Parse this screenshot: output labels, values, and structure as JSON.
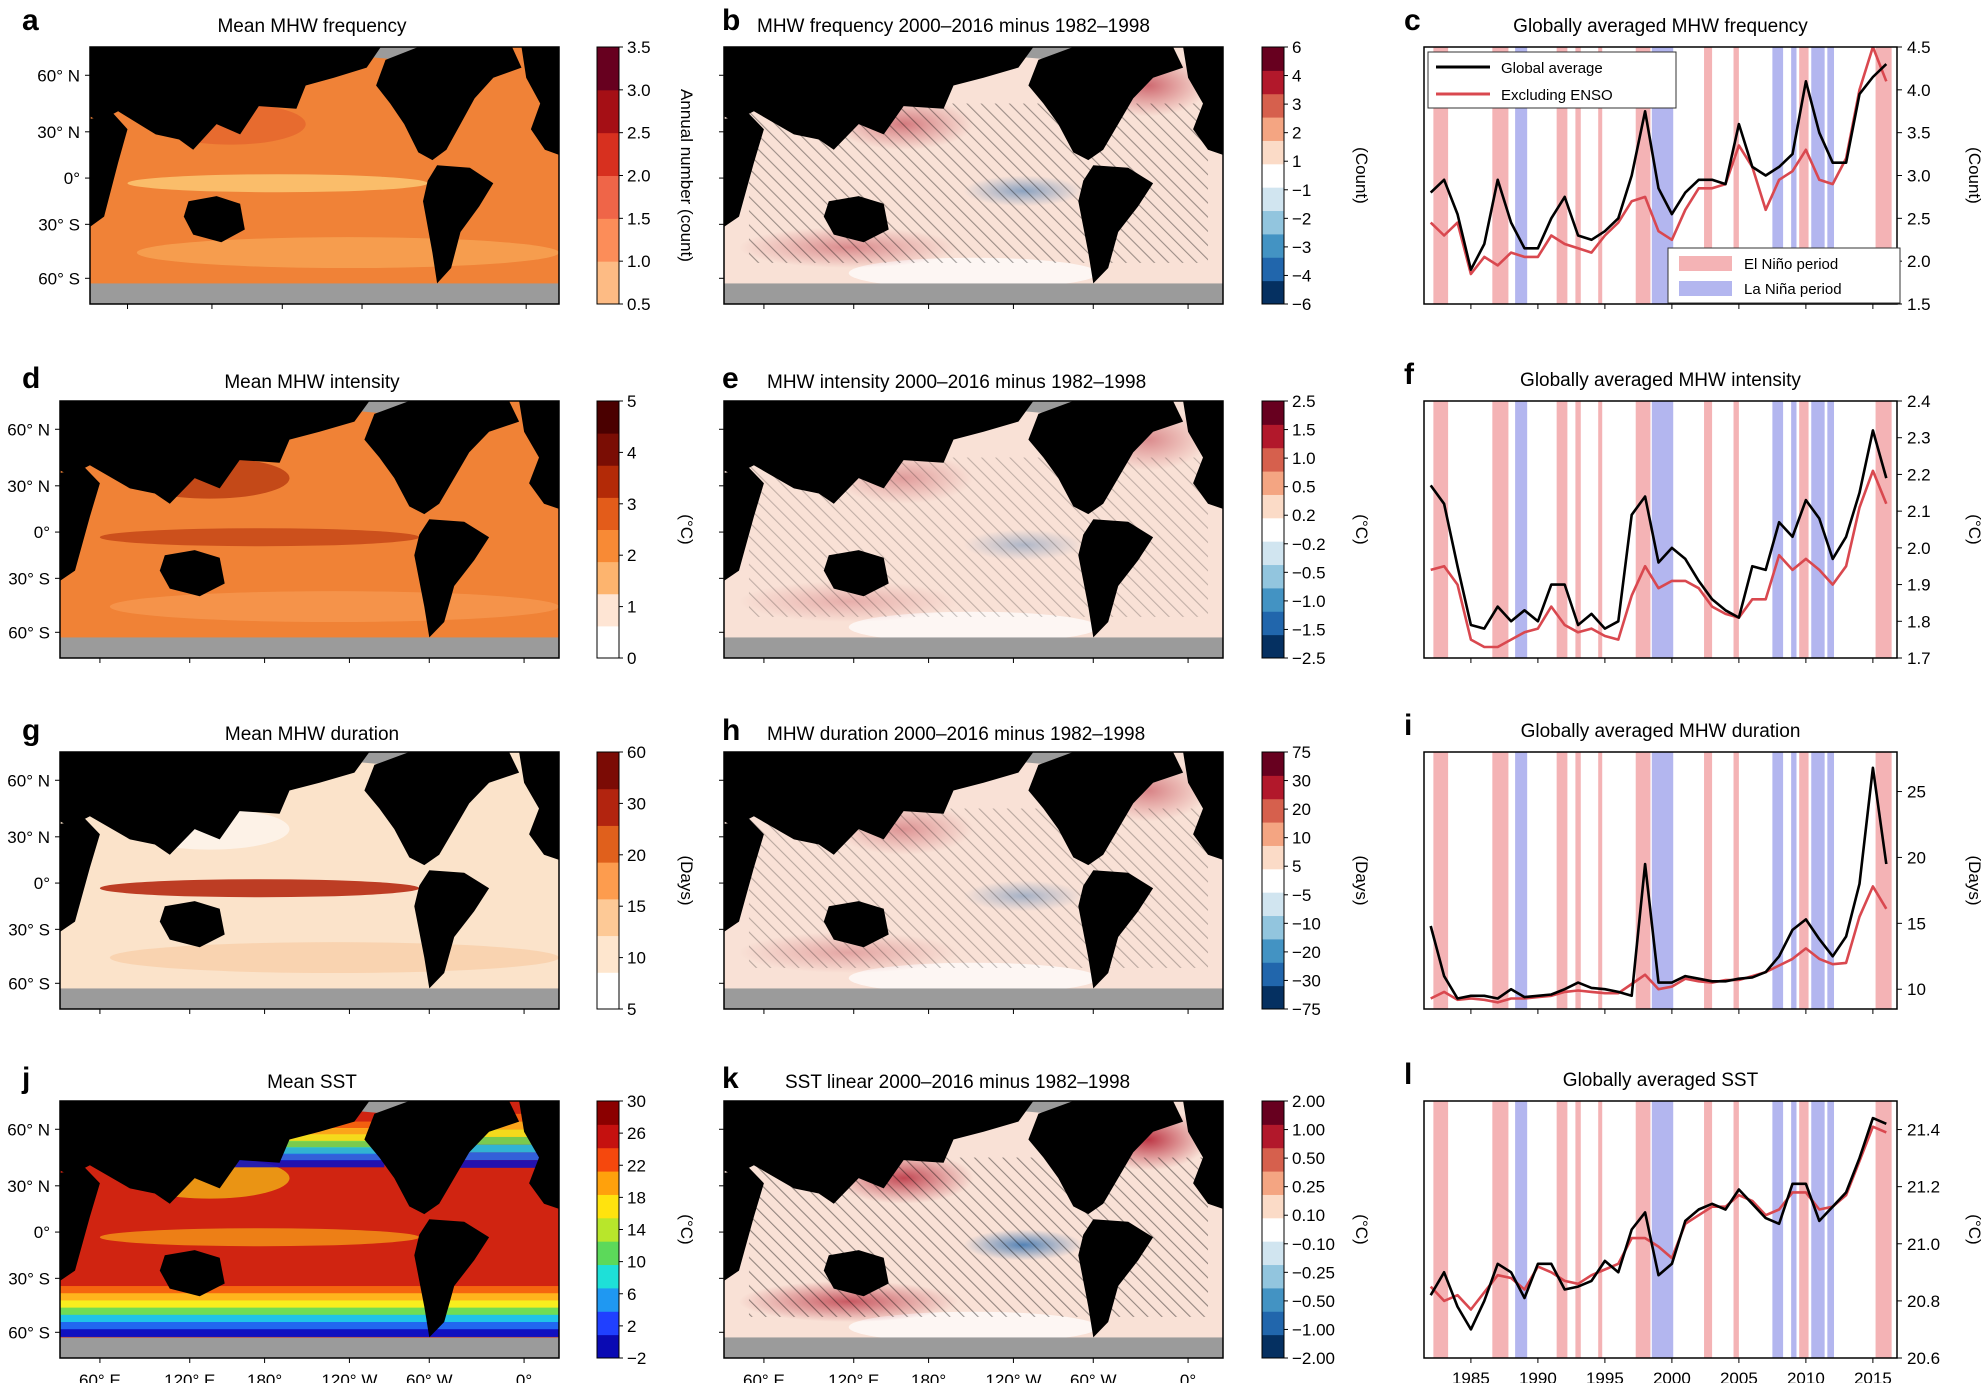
{
  "panels": [
    {
      "letter": "a",
      "title": "Mean MHW frequency",
      "kind": "mean",
      "cmap": "heat",
      "ticks": [
        "3.5",
        "3.0",
        "2.5",
        "2.0",
        "1.5",
        "1.0",
        "0.5"
      ],
      "cblabel": "Annual number (count)"
    },
    {
      "letter": "b",
      "title": "MHW frequency 2000–2016 minus 1982–1998",
      "kind": "diff",
      "intensity": 0.5,
      "ticks": [
        "6",
        "4",
        "3",
        "2",
        "1",
        "−1",
        "−2",
        "−3",
        "−4",
        "−6"
      ],
      "cblabel": "(Count)"
    },
    {
      "letter": "d",
      "title": "Mean MHW intensity",
      "kind": "mean",
      "cmap": "dark",
      "ticks": [
        "5",
        "4",
        "3",
        "2",
        "1",
        "0"
      ],
      "cblabel": "(°C)"
    },
    {
      "letter": "e",
      "title": "MHW intensity 2000–2016 minus 1982–1998",
      "kind": "diff",
      "intensity": 0.3,
      "ticks": [
        "2.5",
        "1.5",
        "1.0",
        "0.5",
        "0.2",
        "−0.2",
        "−0.5",
        "−1.0",
        "−1.5",
        "−2.5"
      ],
      "cblabel": "(°C)"
    },
    {
      "letter": "g",
      "title": "Mean MHW duration",
      "kind": "mean",
      "cmap": "light",
      "ticks": [
        "60",
        "30",
        "20",
        "15",
        "10",
        "5"
      ],
      "cblabel": "(Days)"
    },
    {
      "letter": "h",
      "title": "MHW duration 2000–2016 minus 1982–1998",
      "kind": "diff",
      "intensity": 0.35,
      "ticks": [
        "75",
        "30",
        "20",
        "10",
        "5",
        "−5",
        "−10",
        "−20",
        "−30",
        "−75"
      ],
      "cblabel": "(Days)"
    },
    {
      "letter": "j",
      "title": "Mean SST",
      "kind": "mean",
      "cmap": "jet",
      "ticks": [
        "30",
        "26",
        "22",
        "18",
        "14",
        "10",
        "6",
        "2",
        "−2"
      ],
      "cblabel": "(°C)"
    },
    {
      "letter": "k",
      "title": "SST linear 2000–2016 minus 1982–1998",
      "kind": "diff",
      "intensity": 0.8,
      "ticks": [
        "2.00",
        "1.00",
        "0.50",
        "0.25",
        "0.10",
        "−0.10",
        "−0.25",
        "−0.50",
        "−1.00",
        "−2.00"
      ],
      "cblabel": "(°C)"
    }
  ],
  "map_lat_labels": [
    "60° N",
    "30° N",
    "0°",
    "30° S",
    "60° S"
  ],
  "map_lon_labels": [
    "60° E",
    "120° E",
    "180°",
    "120° W",
    "60° W",
    "0°"
  ],
  "colors": {
    "land": "#000000",
    "ice": "#9b9b9b",
    "global_line": "#000000",
    "exenso_line": "#d9484f",
    "elnino": "#f4b3b5",
    "lanina": "#b3b6ef"
  },
  "enso": {
    "el_nino": [
      [
        1982.2,
        1983.3
      ],
      [
        1986.6,
        1987.8
      ],
      [
        1991.4,
        1992.2
      ],
      [
        1992.8,
        1993.2
      ],
      [
        1994.5,
        1994.8
      ],
      [
        1997.3,
        1998.4
      ],
      [
        2002.4,
        2003.0
      ],
      [
        2004.6,
        2005.0
      ],
      [
        2009.5,
        2010.2
      ],
      [
        2015.2,
        2016.4
      ]
    ],
    "la_nina": [
      [
        1988.3,
        1989.2
      ],
      [
        1998.5,
        2000.1
      ],
      [
        2007.5,
        2008.3
      ],
      [
        2008.9,
        2009.3
      ],
      [
        2010.4,
        2011.4
      ],
      [
        2011.6,
        2012.1
      ]
    ]
  },
  "legend": {
    "global_average": "Global average",
    "excluding_enso": "Excluding ENSO",
    "el_nino": "El Niño period",
    "la_nina": "La Niña period"
  },
  "chart_data": [
    {
      "type": "line",
      "letter": "c",
      "title": "Globally averaged MHW frequency",
      "ylabel": "(Count)",
      "ylim": [
        1.5,
        4.5
      ],
      "yticks": [
        "1.5",
        "2.0",
        "2.5",
        "3.0",
        "3.5",
        "4.0",
        "4.5"
      ],
      "x": [
        1982,
        1983,
        1984,
        1985,
        1986,
        1987,
        1988,
        1989,
        1990,
        1991,
        1992,
        1993,
        1994,
        1995,
        1996,
        1997,
        1998,
        1999,
        2000,
        2001,
        2002,
        2003,
        2004,
        2005,
        2006,
        2007,
        2008,
        2009,
        2010,
        2011,
        2012,
        2013,
        2014,
        2015,
        2016
      ],
      "series": [
        {
          "name": "Global average",
          "values": [
            2.8,
            2.95,
            2.55,
            1.9,
            2.2,
            2.95,
            2.45,
            2.15,
            2.15,
            2.5,
            2.75,
            2.3,
            2.25,
            2.35,
            2.5,
            3.0,
            3.75,
            2.85,
            2.55,
            2.8,
            2.95,
            2.95,
            2.9,
            3.6,
            3.1,
            3.0,
            3.1,
            3.25,
            4.1,
            3.5,
            3.15,
            3.15,
            3.95,
            4.15,
            4.3
          ]
        },
        {
          "name": "Excluding ENSO",
          "values": [
            2.45,
            2.3,
            2.45,
            1.85,
            2.05,
            1.95,
            2.1,
            2.05,
            2.05,
            2.3,
            2.2,
            2.15,
            2.1,
            2.3,
            2.45,
            2.7,
            2.75,
            2.35,
            2.25,
            2.6,
            2.85,
            2.85,
            2.9,
            3.35,
            3.1,
            2.6,
            2.95,
            3.05,
            3.3,
            2.95,
            2.9,
            3.2,
            4.0,
            4.5,
            4.1
          ]
        }
      ],
      "xticks": [
        1985,
        1990,
        1995,
        2000,
        2005,
        2010,
        2015
      ]
    },
    {
      "type": "line",
      "letter": "f",
      "title": "Globally averaged MHW intensity",
      "ylabel": "(°C)",
      "ylim": [
        1.7,
        2.4
      ],
      "yticks": [
        "1.7",
        "1.8",
        "1.9",
        "2.0",
        "2.1",
        "2.2",
        "2.3",
        "2.4"
      ],
      "x": [
        1982,
        1983,
        1984,
        1985,
        1986,
        1987,
        1988,
        1989,
        1990,
        1991,
        1992,
        1993,
        1994,
        1995,
        1996,
        1997,
        1998,
        1999,
        2000,
        2001,
        2002,
        2003,
        2004,
        2005,
        2006,
        2007,
        2008,
        2009,
        2010,
        2011,
        2012,
        2013,
        2014,
        2015,
        2016
      ],
      "series": [
        {
          "name": "Global average",
          "values": [
            2.17,
            2.12,
            1.95,
            1.79,
            1.78,
            1.84,
            1.8,
            1.83,
            1.8,
            1.9,
            1.9,
            1.79,
            1.82,
            1.78,
            1.8,
            2.09,
            2.14,
            1.96,
            2.0,
            1.97,
            1.91,
            1.86,
            1.83,
            1.81,
            1.95,
            1.94,
            2.07,
            2.03,
            2.13,
            2.08,
            1.97,
            2.03,
            2.15,
            2.32,
            2.19
          ]
        },
        {
          "name": "Excluding ENSO",
          "values": [
            1.94,
            1.95,
            1.9,
            1.75,
            1.73,
            1.73,
            1.75,
            1.77,
            1.78,
            1.84,
            1.79,
            1.77,
            1.78,
            1.76,
            1.75,
            1.87,
            1.95,
            1.89,
            1.91,
            1.91,
            1.89,
            1.84,
            1.82,
            1.81,
            1.86,
            1.86,
            1.98,
            1.94,
            1.97,
            1.94,
            1.9,
            1.95,
            2.11,
            2.21,
            2.12
          ]
        }
      ],
      "xticks": [
        1985,
        1990,
        1995,
        2000,
        2005,
        2010,
        2015
      ]
    },
    {
      "type": "line",
      "letter": "i",
      "title": "Globally averaged MHW duration",
      "ylabel": "(Days)",
      "ylim": [
        8.5,
        28
      ],
      "yticks": [
        "10",
        "15",
        "20",
        "25"
      ],
      "x": [
        1982,
        1983,
        1984,
        1985,
        1986,
        1987,
        1988,
        1989,
        1990,
        1991,
        1992,
        1993,
        1994,
        1995,
        1996,
        1997,
        1998,
        1999,
        2000,
        2001,
        2002,
        2003,
        2004,
        2005,
        2006,
        2007,
        2008,
        2009,
        2010,
        2011,
        2012,
        2013,
        2014,
        2015,
        2016
      ],
      "series": [
        {
          "name": "Global average",
          "values": [
            14.8,
            11.0,
            9.3,
            9.5,
            9.5,
            9.3,
            10.0,
            9.4,
            9.5,
            9.6,
            10.0,
            10.5,
            10.1,
            10.0,
            9.8,
            9.5,
            19.5,
            10.5,
            10.5,
            11.0,
            10.8,
            10.6,
            10.6,
            10.8,
            10.9,
            11.3,
            12.5,
            14.5,
            15.3,
            13.8,
            12.5,
            14.0,
            18.0,
            26.8,
            19.5
          ]
        },
        {
          "name": "Excluding ENSO",
          "values": [
            9.3,
            9.8,
            9.2,
            9.3,
            9.2,
            9.0,
            9.3,
            9.3,
            9.4,
            9.5,
            9.8,
            9.9,
            9.8,
            9.7,
            9.7,
            10.4,
            11.1,
            10.0,
            10.2,
            10.8,
            10.6,
            10.5,
            10.7,
            10.7,
            11.0,
            11.3,
            11.8,
            12.3,
            13.1,
            12.3,
            11.9,
            12.0,
            15.5,
            17.8,
            16.1
          ]
        }
      ],
      "xticks": [
        1985,
        1990,
        1995,
        2000,
        2005,
        2010,
        2015
      ]
    },
    {
      "type": "line",
      "letter": "l",
      "title": "Globally averaged SST",
      "ylabel": "(°C)",
      "ylim": [
        20.6,
        21.5
      ],
      "yticks": [
        "20.6",
        "20.8",
        "21.0",
        "21.2",
        "21.4"
      ],
      "x": [
        1982,
        1983,
        1984,
        1985,
        1986,
        1987,
        1988,
        1989,
        1990,
        1991,
        1992,
        1993,
        1994,
        1995,
        1996,
        1997,
        1998,
        1999,
        2000,
        2001,
        2002,
        2003,
        2004,
        2005,
        2006,
        2007,
        2008,
        2009,
        2010,
        2011,
        2012,
        2013,
        2014,
        2015,
        2016
      ],
      "series": [
        {
          "name": "Global average",
          "values": [
            20.82,
            20.9,
            20.78,
            20.7,
            20.8,
            20.93,
            20.9,
            20.81,
            20.93,
            20.93,
            20.84,
            20.85,
            20.87,
            20.94,
            20.9,
            21.05,
            21.11,
            20.89,
            20.93,
            21.08,
            21.12,
            21.14,
            21.12,
            21.19,
            21.14,
            21.09,
            21.07,
            21.21,
            21.21,
            21.08,
            21.13,
            21.18,
            21.3,
            21.44,
            21.42
          ]
        },
        {
          "name": "Excluding ENSO",
          "values": [
            20.85,
            20.8,
            20.82,
            20.77,
            20.83,
            20.89,
            20.88,
            20.84,
            20.92,
            20.9,
            20.87,
            20.86,
            20.89,
            20.91,
            20.93,
            21.02,
            21.02,
            20.99,
            20.95,
            21.07,
            21.1,
            21.13,
            21.13,
            21.17,
            21.15,
            21.1,
            21.12,
            21.18,
            21.18,
            21.12,
            21.13,
            21.17,
            21.29,
            21.41,
            21.39
          ]
        }
      ],
      "xticks": [
        1985,
        1990,
        1995,
        2000,
        2005,
        2010,
        2015
      ]
    }
  ]
}
